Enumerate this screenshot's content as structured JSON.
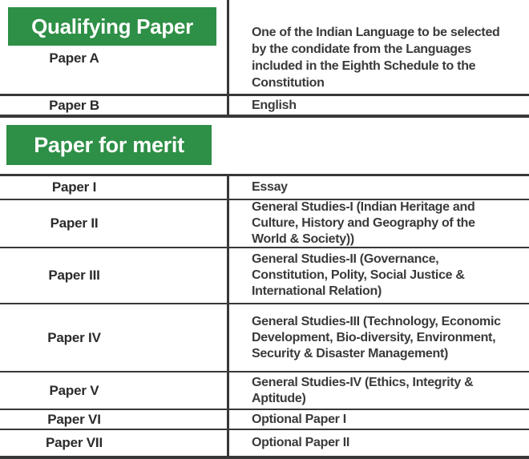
{
  "colors": {
    "banner_green": "#2e8f46",
    "banner_text": "#ffffff",
    "label_text": "#2b2b2b",
    "body_text": "#3a3a3a",
    "line": "#383838"
  },
  "qualifying": {
    "banner_label": "Qualifying Paper",
    "rows": [
      {
        "paper": "Paper A",
        "subject": "One of the Indian Language to be selected by the condidate from the Languages included in the Eighth Schedule to the Constitution"
      },
      {
        "paper": "Paper B",
        "subject": "English"
      }
    ]
  },
  "merit": {
    "banner_label": "Paper for merit",
    "rows": [
      {
        "paper": "Paper I",
        "subject": "Essay"
      },
      {
        "paper": "Paper II",
        "subject": "General Studies-I (Indian Heritage and Culture, History and Geography of the World & Society))"
      },
      {
        "paper": "Paper III",
        "subject": "General Studies-II (Governance, Constitution, Polity, Social Justice & International Relation)"
      },
      {
        "paper": "Paper IV",
        "subject": "General Studies-III (Technology, Economic Development, Bio-diversity, Environment, Security & Disaster Management)"
      },
      {
        "paper": "Paper V",
        "subject": "General Studies-IV (Ethics, Integrity & Aptitude)"
      },
      {
        "paper": "Paper VI",
        "subject": "Optional Paper I"
      },
      {
        "paper": "Paper VII",
        "subject": "Optional Paper II"
      }
    ]
  }
}
